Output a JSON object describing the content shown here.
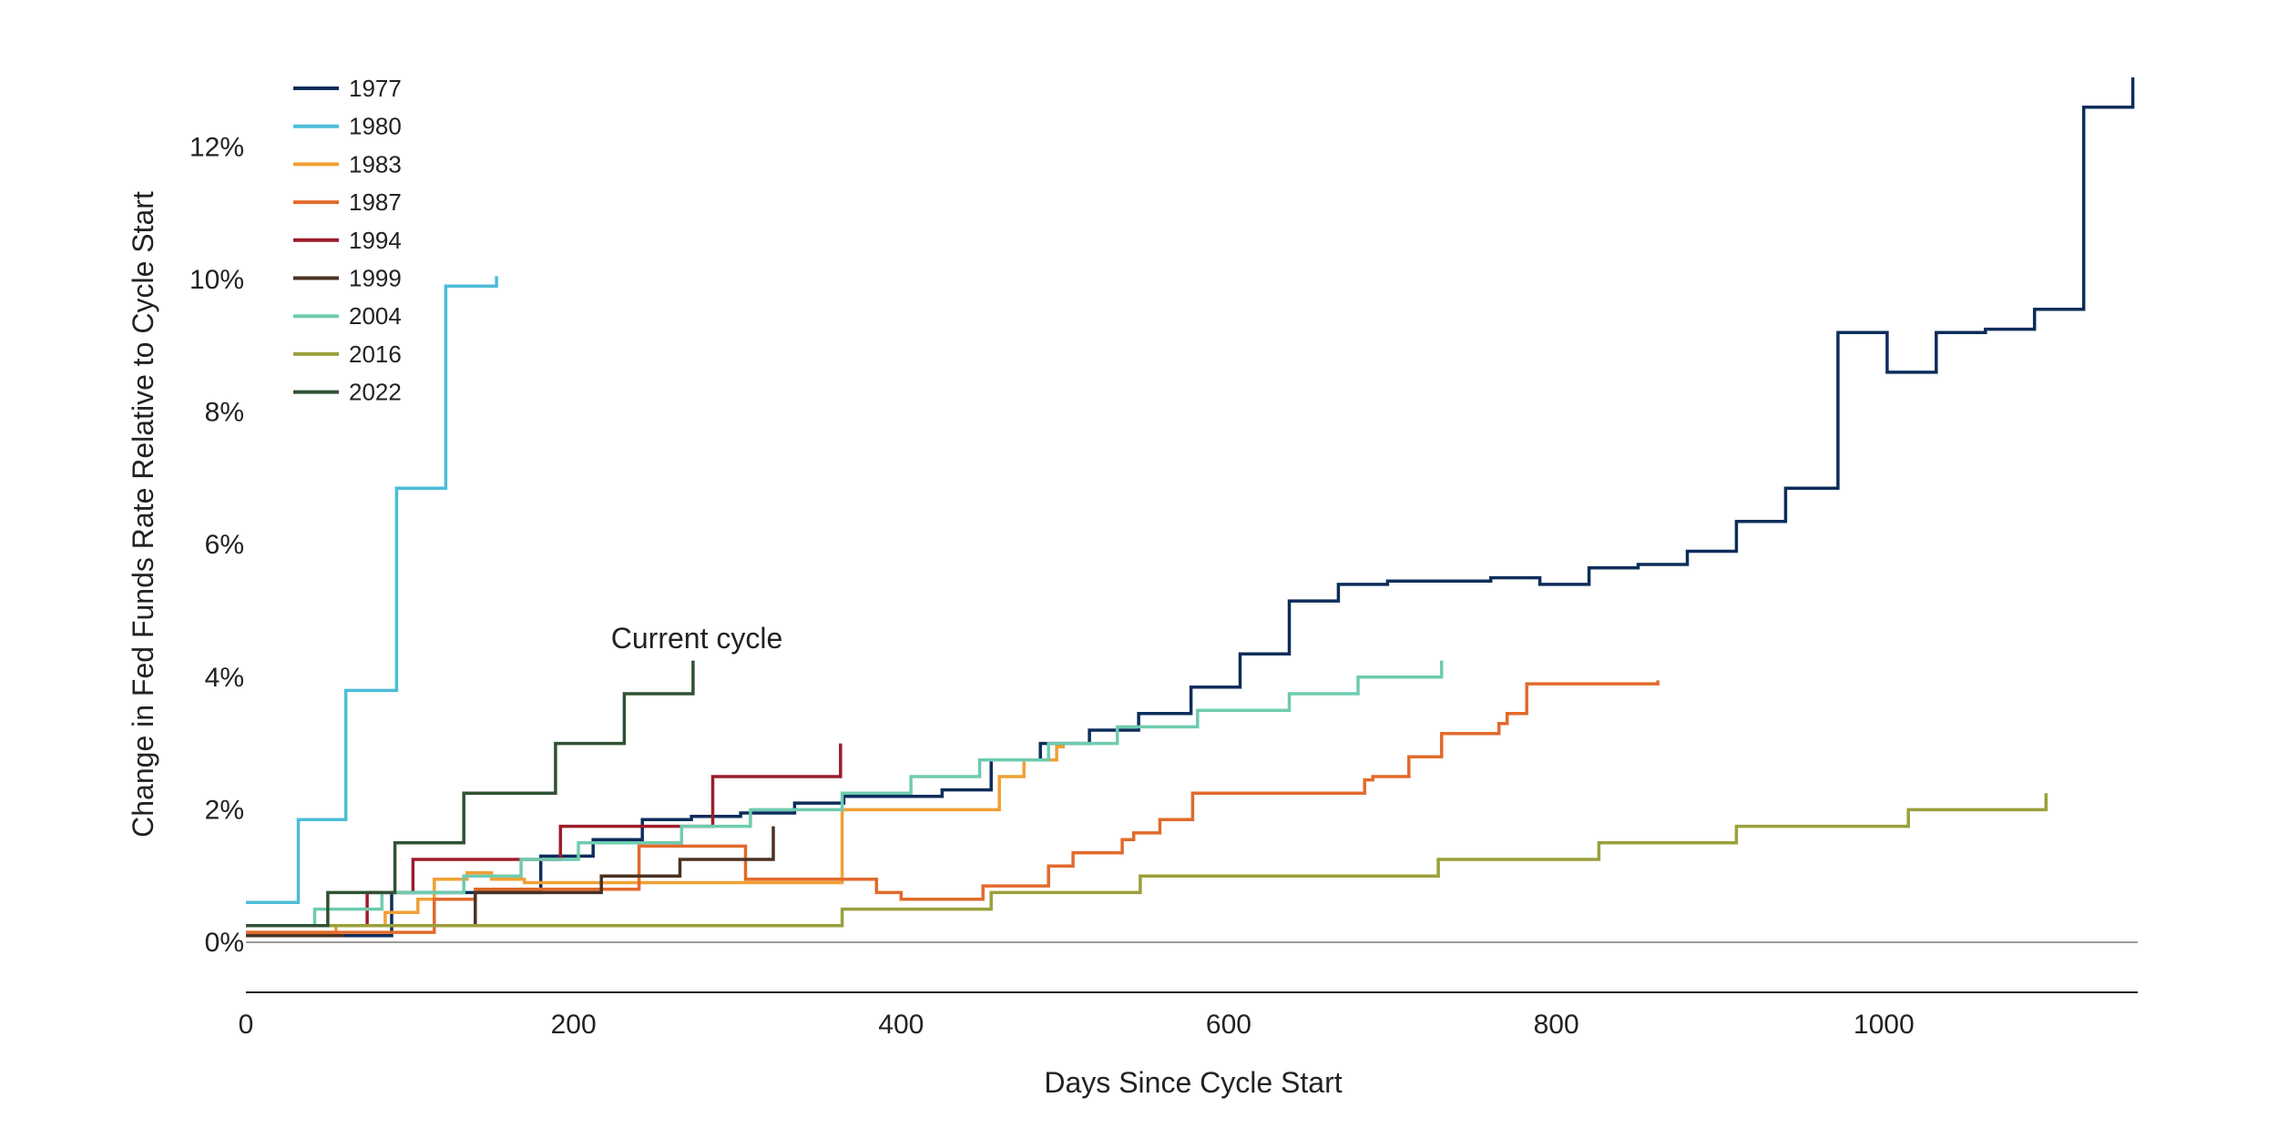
{
  "chart_data": {
    "type": "line",
    "title": "",
    "xlabel": "Days Since Cycle Start",
    "ylabel": "Change in Fed Funds Rate Relative to Cycle Start",
    "xlim": [
      0,
      1155
    ],
    "ylim": [
      -0.75,
      13.5
    ],
    "x_ticks": [
      0,
      200,
      400,
      600,
      800,
      1000
    ],
    "x_tick_labels": [
      "0",
      "200",
      "400",
      "600",
      "800",
      "1000"
    ],
    "y_ticks": [
      0,
      2,
      4,
      6,
      8,
      10,
      12
    ],
    "y_tick_labels": [
      "0%",
      "2%",
      "4%",
      "6%",
      "8%",
      "10%",
      "12%"
    ],
    "grid": false,
    "legend_position": "top-left",
    "annotations": [
      {
        "text": "Current cycle",
        "x": 275,
        "y": 4.6
      }
    ],
    "series": [
      {
        "name": "1977",
        "color": "#0d2d5a",
        "step": true,
        "points": [
          [
            0,
            0.1
          ],
          [
            89,
            0.1
          ],
          [
            89,
            0.75
          ],
          [
            180,
            0.75
          ],
          [
            180,
            1.3
          ],
          [
            212,
            1.3
          ],
          [
            212,
            1.55
          ],
          [
            242,
            1.55
          ],
          [
            242,
            1.85
          ],
          [
            272,
            1.85
          ],
          [
            272,
            1.9
          ],
          [
            302,
            1.9
          ],
          [
            302,
            1.95
          ],
          [
            335,
            1.95
          ],
          [
            335,
            2.1
          ],
          [
            365,
            2.1
          ],
          [
            365,
            2.2
          ],
          [
            425,
            2.2
          ],
          [
            425,
            2.3
          ],
          [
            455,
            2.3
          ],
          [
            455,
            2.75
          ],
          [
            485,
            2.75
          ],
          [
            485,
            3.0
          ],
          [
            515,
            3.0
          ],
          [
            515,
            3.2
          ],
          [
            545,
            3.2
          ],
          [
            545,
            3.45
          ],
          [
            577,
            3.45
          ],
          [
            577,
            3.85
          ],
          [
            607,
            3.85
          ],
          [
            607,
            4.35
          ],
          [
            637,
            4.35
          ],
          [
            637,
            5.15
          ],
          [
            667,
            5.15
          ],
          [
            667,
            5.4
          ],
          [
            697,
            5.4
          ],
          [
            697,
            5.45
          ],
          [
            730,
            5.45
          ],
          [
            730,
            5.45
          ],
          [
            760,
            5.45
          ],
          [
            760,
            5.5
          ],
          [
            790,
            5.5
          ],
          [
            790,
            5.4
          ],
          [
            820,
            5.4
          ],
          [
            820,
            5.65
          ],
          [
            850,
            5.65
          ],
          [
            850,
            5.7
          ],
          [
            880,
            5.7
          ],
          [
            880,
            5.9
          ],
          [
            910,
            5.9
          ],
          [
            910,
            6.35
          ],
          [
            940,
            6.35
          ],
          [
            940,
            6.85
          ],
          [
            972,
            6.85
          ],
          [
            972,
            9.2
          ],
          [
            1002,
            9.2
          ],
          [
            1002,
            8.6
          ],
          [
            1032,
            8.6
          ],
          [
            1032,
            9.2
          ],
          [
            1062,
            9.2
          ],
          [
            1062,
            9.25
          ],
          [
            1092,
            9.25
          ],
          [
            1092,
            9.55
          ],
          [
            1122,
            9.55
          ],
          [
            1122,
            12.6
          ],
          [
            1152,
            12.6
          ],
          [
            1152,
            13.05
          ]
        ]
      },
      {
        "name": "1980",
        "color": "#4cbcd8",
        "step": true,
        "points": [
          [
            0,
            0.6
          ],
          [
            32,
            0.6
          ],
          [
            32,
            1.85
          ],
          [
            61,
            1.85
          ],
          [
            61,
            3.8
          ],
          [
            92,
            3.8
          ],
          [
            92,
            6.85
          ],
          [
            122,
            6.85
          ],
          [
            122,
            9.9
          ],
          [
            153,
            9.9
          ],
          [
            153,
            10.05
          ]
        ]
      },
      {
        "name": "1983",
        "color": "#f0a034",
        "step": true,
        "points": [
          [
            0,
            0.15
          ],
          [
            55,
            0.15
          ],
          [
            55,
            0.25
          ],
          [
            85,
            0.25
          ],
          [
            85,
            0.45
          ],
          [
            105,
            0.45
          ],
          [
            105,
            0.65
          ],
          [
            115,
            0.65
          ],
          [
            115,
            0.95
          ],
          [
            135,
            0.95
          ],
          [
            135,
            1.05
          ],
          [
            150,
            1.05
          ],
          [
            150,
            0.95
          ],
          [
            170,
            0.95
          ],
          [
            170,
            0.9
          ],
          [
            364,
            0.9
          ],
          [
            364,
            2.0
          ],
          [
            460,
            2.0
          ],
          [
            460,
            2.5
          ],
          [
            475,
            2.5
          ],
          [
            475,
            2.75
          ],
          [
            495,
            2.75
          ],
          [
            495,
            2.95
          ],
          [
            500,
            2.95
          ]
        ]
      },
      {
        "name": "1987",
        "color": "#e26a2c",
        "step": true,
        "points": [
          [
            0,
            0.15
          ],
          [
            115,
            0.15
          ],
          [
            115,
            0.65
          ],
          [
            140,
            0.65
          ],
          [
            140,
            0.8
          ],
          [
            240,
            0.8
          ],
          [
            240,
            1.45
          ],
          [
            305,
            1.45
          ],
          [
            305,
            0.95
          ],
          [
            385,
            0.95
          ],
          [
            385,
            0.75
          ],
          [
            400,
            0.75
          ],
          [
            400,
            0.65
          ],
          [
            450,
            0.65
          ],
          [
            450,
            0.85
          ],
          [
            490,
            0.85
          ],
          [
            490,
            1.15
          ],
          [
            505,
            1.15
          ],
          [
            505,
            1.35
          ],
          [
            535,
            1.35
          ],
          [
            535,
            1.55
          ],
          [
            542,
            1.55
          ],
          [
            542,
            1.65
          ],
          [
            558,
            1.65
          ],
          [
            558,
            1.85
          ],
          [
            578,
            1.85
          ],
          [
            578,
            2.25
          ],
          [
            683,
            2.25
          ],
          [
            683,
            2.45
          ],
          [
            688,
            2.45
          ],
          [
            688,
            2.5
          ],
          [
            710,
            2.5
          ],
          [
            710,
            2.8
          ],
          [
            730,
            2.8
          ],
          [
            730,
            3.15
          ],
          [
            765,
            3.15
          ],
          [
            765,
            3.3
          ],
          [
            770,
            3.3
          ],
          [
            770,
            3.45
          ],
          [
            782,
            3.45
          ],
          [
            782,
            3.9
          ],
          [
            862,
            3.9
          ],
          [
            862,
            3.95
          ]
        ]
      },
      {
        "name": "1994",
        "color": "#9c1c2a",
        "step": true,
        "points": [
          [
            0,
            0.25
          ],
          [
            74,
            0.25
          ],
          [
            74,
            0.75
          ],
          [
            102,
            0.75
          ],
          [
            102,
            1.25
          ],
          [
            192,
            1.25
          ],
          [
            192,
            1.75
          ],
          [
            285,
            1.75
          ],
          [
            285,
            2.5
          ],
          [
            363,
            2.5
          ],
          [
            363,
            3.0
          ]
        ]
      },
      {
        "name": "1999",
        "color": "#4a3222",
        "step": true,
        "points": [
          [
            0,
            0.1
          ],
          [
            60,
            0.1
          ]
        ]
      },
      {
        "name": "1999 ",
        "color": "#4a3222",
        "step": true,
        "hide_legend": true,
        "points": [
          [
            50,
            0.25
          ],
          [
            140,
            0.25
          ],
          [
            140,
            0.75
          ],
          [
            217,
            0.75
          ],
          [
            217,
            1.0
          ],
          [
            265,
            1.0
          ],
          [
            265,
            1.25
          ],
          [
            322,
            1.25
          ],
          [
            322,
            1.75
          ]
        ]
      },
      {
        "name": "2004",
        "color": "#6ecbb0",
        "step": true,
        "points": [
          [
            0,
            0.25
          ],
          [
            42,
            0.25
          ],
          [
            42,
            0.5
          ],
          [
            83,
            0.5
          ],
          [
            83,
            0.75
          ],
          [
            133,
            0.75
          ],
          [
            133,
            1.0
          ],
          [
            168,
            1.0
          ],
          [
            168,
            1.25
          ],
          [
            203,
            1.25
          ],
          [
            203,
            1.5
          ],
          [
            266,
            1.5
          ],
          [
            266,
            1.75
          ],
          [
            308,
            1.75
          ],
          [
            308,
            2.0
          ],
          [
            364,
            2.0
          ],
          [
            364,
            2.25
          ],
          [
            406,
            2.25
          ],
          [
            406,
            2.5
          ],
          [
            448,
            2.5
          ],
          [
            448,
            2.75
          ],
          [
            490,
            2.75
          ],
          [
            490,
            3.0
          ],
          [
            532,
            3.0
          ],
          [
            532,
            3.25
          ],
          [
            581,
            3.25
          ],
          [
            581,
            3.5
          ],
          [
            637,
            3.5
          ],
          [
            637,
            3.75
          ],
          [
            679,
            3.75
          ],
          [
            679,
            4.0
          ],
          [
            730,
            4.0
          ],
          [
            730,
            4.25
          ]
        ]
      },
      {
        "name": "2016",
        "color": "#9aa03a",
        "step": true,
        "points": [
          [
            0,
            0.25
          ],
          [
            364,
            0.25
          ],
          [
            364,
            0.5
          ],
          [
            455,
            0.5
          ],
          [
            455,
            0.75
          ],
          [
            546,
            0.75
          ],
          [
            546,
            1.0
          ],
          [
            728,
            1.0
          ],
          [
            728,
            1.25
          ],
          [
            826,
            1.25
          ],
          [
            826,
            1.5
          ],
          [
            910,
            1.5
          ],
          [
            910,
            1.75
          ],
          [
            1015,
            1.75
          ],
          [
            1015,
            2.0
          ],
          [
            1099,
            2.0
          ],
          [
            1099,
            2.25
          ]
        ]
      },
      {
        "name": "2022",
        "color": "#2f5233",
        "step": true,
        "points": [
          [
            0,
            0.25
          ],
          [
            50,
            0.25
          ],
          [
            50,
            0.75
          ],
          [
            91,
            0.75
          ],
          [
            91,
            1.5
          ],
          [
            133,
            1.5
          ],
          [
            133,
            2.25
          ],
          [
            189,
            2.25
          ],
          [
            189,
            3.0
          ],
          [
            231,
            3.0
          ],
          [
            231,
            3.75
          ],
          [
            273,
            3.75
          ],
          [
            273,
            4.25
          ]
        ]
      }
    ]
  }
}
